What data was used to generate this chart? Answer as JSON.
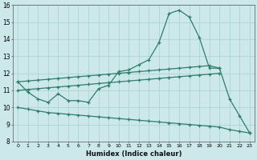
{
  "xlabel": "Humidex (Indice chaleur)",
  "x_values": [
    0,
    1,
    2,
    3,
    4,
    5,
    6,
    7,
    8,
    9,
    10,
    11,
    12,
    13,
    14,
    15,
    16,
    17,
    18,
    19,
    20,
    21,
    22,
    23
  ],
  "line_main": [
    11.5,
    10.9,
    10.5,
    10.3,
    10.8,
    10.4,
    10.4,
    10.3,
    11.1,
    11.3,
    12.1,
    12.2,
    12.5,
    12.8,
    13.8,
    15.5,
    15.7,
    15.3,
    14.1,
    12.3,
    12.3,
    10.5,
    9.5,
    8.5
  ],
  "line_upper": [
    11.5,
    11.55,
    11.6,
    11.65,
    11.7,
    11.75,
    11.8,
    11.85,
    11.9,
    11.95,
    12.0,
    12.05,
    12.1,
    12.15,
    12.2,
    12.25,
    12.3,
    12.35,
    12.4,
    12.45,
    12.3,
    null,
    null,
    null
  ],
  "line_mid": [
    11.0,
    11.05,
    11.1,
    11.15,
    11.2,
    11.25,
    11.3,
    11.35,
    11.4,
    11.45,
    11.5,
    11.55,
    11.6,
    11.65,
    11.7,
    11.75,
    11.8,
    11.85,
    11.9,
    11.95,
    12.0,
    null,
    null,
    null
  ],
  "line_lower": [
    10.0,
    9.9,
    9.8,
    9.7,
    9.65,
    9.6,
    9.55,
    9.5,
    9.45,
    9.4,
    9.35,
    9.3,
    9.25,
    9.2,
    9.15,
    9.1,
    9.05,
    9.0,
    8.95,
    8.9,
    8.85,
    8.7,
    8.6,
    8.5
  ],
  "color": "#2e7d6b",
  "bg_color": "#cce8ea",
  "grid_color": "#aed4d6",
  "ylim": [
    8,
    16
  ],
  "yticks": [
    8,
    9,
    10,
    11,
    12,
    13,
    14,
    15,
    16
  ],
  "xticks": [
    0,
    1,
    2,
    3,
    4,
    5,
    6,
    7,
    8,
    9,
    10,
    11,
    12,
    13,
    14,
    15,
    16,
    17,
    18,
    19,
    20,
    21,
    22,
    23
  ]
}
